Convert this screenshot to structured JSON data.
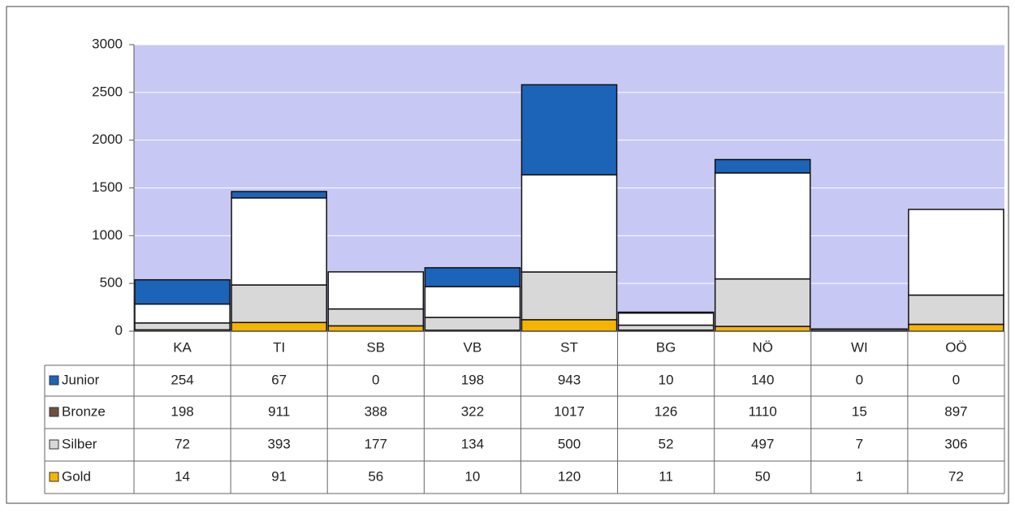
{
  "chart_data": {
    "type": "stacked_bar",
    "categories": [
      "KA",
      "TI",
      "SB",
      "VB",
      "ST",
      "BG",
      "NÖ",
      "WI",
      "OÖ"
    ],
    "series": [
      {
        "name": "Junior",
        "color": "#1c64b8",
        "bar_fill": "#1c64b8",
        "values": [
          254,
          67,
          0,
          198,
          943,
          10,
          140,
          0,
          0
        ]
      },
      {
        "name": "Bronze",
        "color": "#6e4f3e",
        "bar_fill": "#ffffff",
        "values": [
          198,
          911,
          388,
          322,
          1017,
          126,
          1110,
          15,
          897
        ]
      },
      {
        "name": "Silber",
        "color": "#d8d8d8",
        "bar_fill": "#d8d8d8",
        "values": [
          72,
          393,
          177,
          134,
          500,
          52,
          497,
          7,
          306
        ]
      },
      {
        "name": "Gold",
        "color": "#f5b400",
        "bar_fill": "#f5b400",
        "values": [
          14,
          91,
          56,
          10,
          120,
          11,
          50,
          1,
          72
        ]
      }
    ],
    "ylim": [
      0,
      3000
    ],
    "yticks": [
      0,
      500,
      1000,
      1500,
      2000,
      2500,
      3000
    ],
    "grid": true
  }
}
